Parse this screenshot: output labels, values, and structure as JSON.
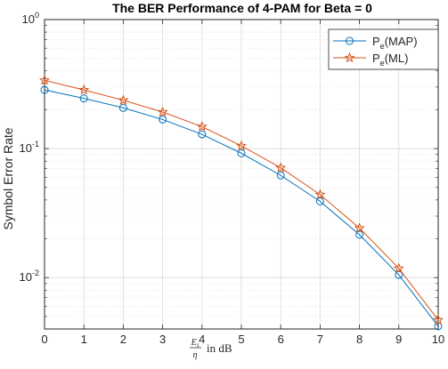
{
  "chart_data": {
    "type": "line",
    "title": "The BER Performance of 4-PAM for Beta = 0",
    "ylabel": "Symbol Error Rate",
    "xlabel": {
      "numerator": "E",
      "numerator_subscript": "s",
      "denominator": "η",
      "suffix": "in dB"
    },
    "xlim": [
      0,
      10
    ],
    "ylim": [
      0.004,
      1
    ],
    "yscale": "log",
    "grid": true,
    "legend_position": "top-right",
    "x_ticks": [
      "0",
      "1",
      "2",
      "3",
      "4",
      "5",
      "6",
      "7",
      "8",
      "9",
      "10"
    ],
    "y_ticks": [
      {
        "value": 0.01,
        "base": "10",
        "exp": "-2"
      },
      {
        "value": 0.1,
        "base": "10",
        "exp": "-1"
      },
      {
        "value": 1,
        "base": "10",
        "exp": "0"
      }
    ],
    "x": [
      0,
      1,
      2,
      3,
      4,
      5,
      6,
      7,
      8,
      9,
      10
    ],
    "series": [
      {
        "name_base": "P",
        "name_sub": "e",
        "name_suffix": "(MAP)",
        "marker": "circle",
        "color": "#0072BD",
        "values": [
          0.285,
          0.245,
          0.207,
          0.168,
          0.129,
          0.092,
          0.062,
          0.039,
          0.0215,
          0.0105,
          0.0042
        ]
      },
      {
        "name_base": "P",
        "name_sub": "e",
        "name_suffix": "(ML)",
        "marker": "star",
        "color": "#D95319",
        "values": [
          0.338,
          0.285,
          0.237,
          0.192,
          0.148,
          0.105,
          0.071,
          0.044,
          0.0242,
          0.0118,
          0.0047
        ]
      }
    ]
  }
}
